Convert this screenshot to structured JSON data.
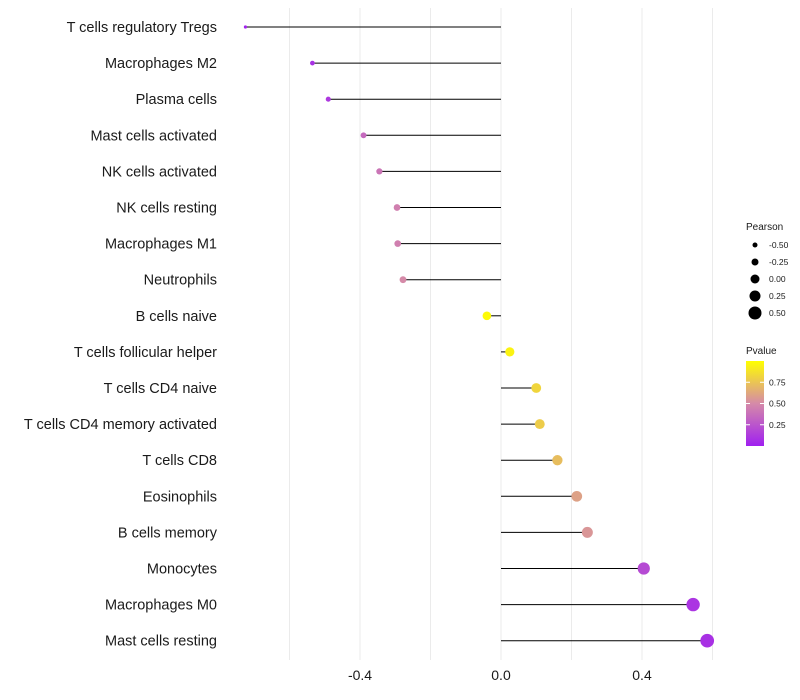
{
  "chart_data": {
    "type": "lollipop",
    "title": "",
    "xlabel": "",
    "ylabel": "",
    "xlim": [
      -0.72,
      0.6
    ],
    "x_ticks": [
      -0.4,
      0.0,
      0.4
    ],
    "x_tick_labels": [
      "-0.4",
      "0.0",
      "0.4"
    ],
    "grid": true,
    "categories": [
      "T cells regulatory  Tregs",
      "Macrophages M2",
      "Plasma cells",
      "Mast cells activated",
      "NK cells activated",
      "NK cells resting",
      "Macrophages M1",
      "Neutrophils",
      "B cells naive",
      "T cells follicular helper",
      "T cells CD4 naive",
      "T cells CD4 memory activated",
      "T cells CD8",
      "Eosinophils",
      "B cells memory",
      "Monocytes",
      "Macrophages M0",
      "Mast cells resting"
    ],
    "pearson": [
      -0.725,
      -0.535,
      -0.49,
      -0.39,
      -0.345,
      -0.295,
      -0.293,
      -0.278,
      -0.04,
      0.025,
      0.1,
      0.11,
      0.16,
      0.215,
      0.245,
      0.405,
      0.545,
      0.585
    ],
    "pvalue": [
      0.02,
      0.08,
      0.12,
      0.35,
      0.4,
      0.45,
      0.45,
      0.5,
      0.98,
      0.95,
      0.82,
      0.78,
      0.72,
      0.6,
      0.55,
      0.2,
      0.1,
      0.08
    ],
    "size_legend": {
      "title": "Pearson",
      "values": [
        -0.5,
        -0.25,
        0.0,
        0.25,
        0.5
      ],
      "labels": [
        "-0.50",
        "-0.25",
        "0.00",
        "0.25",
        "0.50"
      ]
    },
    "color_legend": {
      "title": "Pvalue",
      "range": [
        0.0,
        1.0
      ],
      "ticks": [
        0.25,
        0.5,
        0.75
      ],
      "labels": [
        "0.25",
        "0.50",
        "0.75"
      ],
      "low_color": "#a020f0",
      "mid_color": "#d58aa8",
      "high_color": "#ffff00"
    },
    "legend_position": "right"
  }
}
